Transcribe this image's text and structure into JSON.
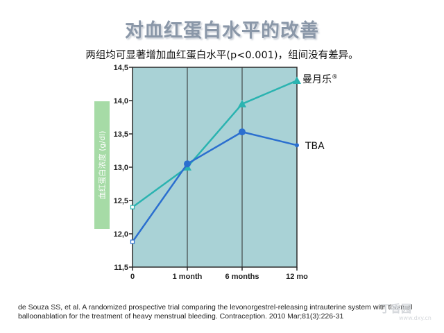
{
  "slide": {
    "title": "对血红蛋白水平的改善",
    "subtitle": "两组均可显著增加血红蛋白水平(p<0.001)，组间没有差异。",
    "reference": "de Souza SS, et al. A randomized prospective trial comparing the levonorgestrel-releasing intrauterine system with thermal balloonablation for the treatment of heavy menstrual bleeding. Contraception. 2010 Mar;81(3):226-31"
  },
  "watermark": {
    "main": "丁香园",
    "sub": "www.dxy.cn"
  },
  "chart_data": {
    "type": "line",
    "categories": [
      "0",
      "1 month",
      "6 months",
      "12 mo"
    ],
    "ylabel": "血红蛋白浓度 (g/dl)",
    "ylim": [
      11.5,
      14.5
    ],
    "yticks": [
      "11,5",
      "12,0",
      "12,5",
      "13,0",
      "13,5",
      "14,0",
      "14,5"
    ],
    "grid": true,
    "plot_background": "#a9d2d6",
    "series": [
      {
        "name": "曼月乐",
        "name_mark": "®",
        "color": "#2ab3b0",
        "marker": "triangle",
        "values": [
          12.4,
          13.0,
          13.95,
          14.3
        ]
      },
      {
        "name": "TBA",
        "color": "#2b6fcf",
        "marker": "circle",
        "values": [
          11.88,
          13.05,
          13.53,
          13.33
        ]
      }
    ]
  }
}
